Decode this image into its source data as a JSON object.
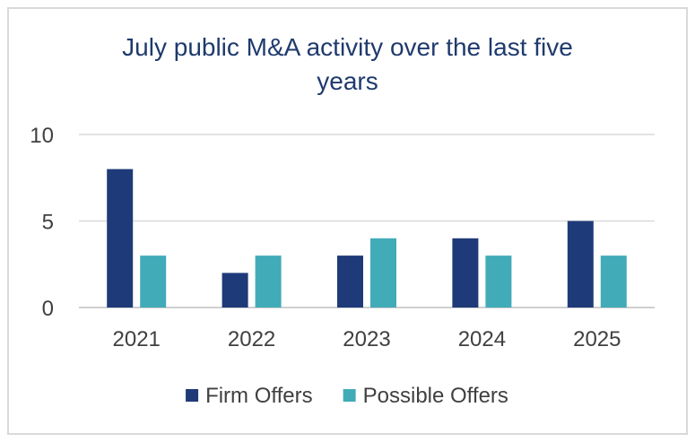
{
  "chart_data": {
    "type": "bar",
    "title": "July public M&A activity over the last five years",
    "categories": [
      "2021",
      "2022",
      "2023",
      "2024",
      "2025"
    ],
    "series": [
      {
        "name": "Firm Offers",
        "values": [
          8,
          2,
          3,
          4,
          5
        ],
        "color": "#1f3a78"
      },
      {
        "name": "Possible Offers",
        "values": [
          3,
          3,
          4,
          3,
          3
        ],
        "color": "#42abb8"
      }
    ],
    "y_ticks": [
      "0",
      "5",
      "10"
    ],
    "ylim": [
      0,
      10
    ],
    "grid": true,
    "legend_position": "bottom"
  }
}
